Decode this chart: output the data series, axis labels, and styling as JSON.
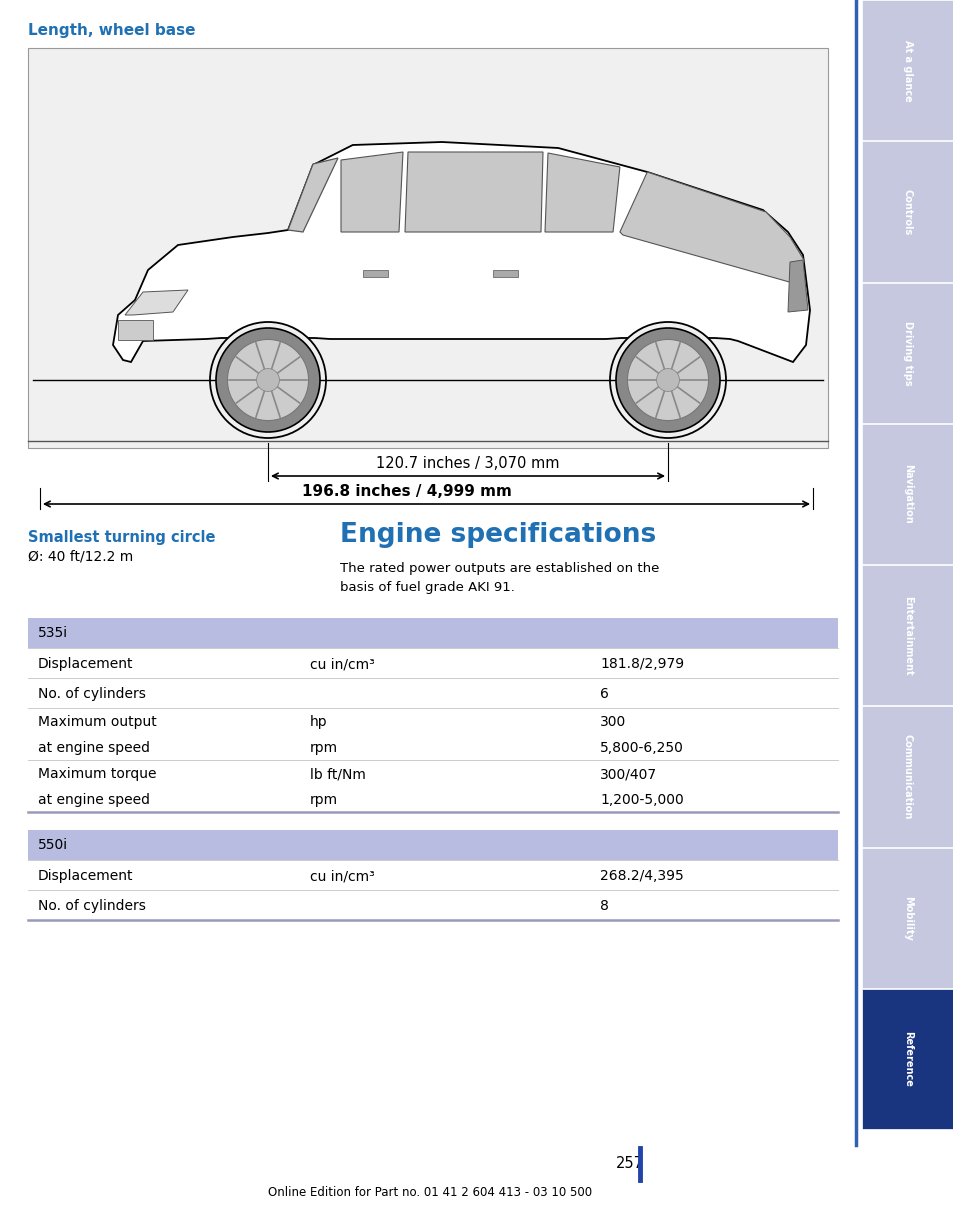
{
  "title_length_wheelbase": "Length, wheel base",
  "dim1_text": "120.7 inches / 3,070 mm",
  "dim2_text": "196.8 inches / 4,999 mm",
  "smallest_turning_circle_label": "Smallest turning circle",
  "smallest_turning_circle_value": "Ø: 40 ft/12.2 m",
  "engine_specs_title": "Engine specifications",
  "engine_specs_subtitle": "The rated power outputs are established on the\nbasis of fuel grade AKI 91.",
  "section_535i": "535i",
  "section_550i": "550i",
  "header_bg_color": "#b8bce0",
  "row_separator_color": "#cccccc",
  "section_separator_color": "#9999bb",
  "blue_title_color": "#2070b4",
  "sidebar_labels": [
    "At a glance",
    "Controls",
    "Driving tips",
    "Navigation",
    "Entertainment",
    "Communication",
    "Mobility",
    "Reference"
  ],
  "sidebar_active": "Reference",
  "sidebar_active_color": "#1a3580",
  "sidebar_inactive_color": "#c5c8de",
  "page_number": "257",
  "footer_text": "Online Edition for Part no. 01 41 2 604 413 - 03 10 500",
  "car_box_bg": "#f0f0f0",
  "car_box_border": "#aaaaaa"
}
